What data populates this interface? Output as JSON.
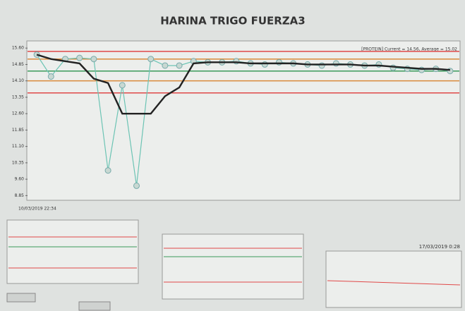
{
  "chart_data": {
    "type": "line",
    "title": "HARINA TRIGO FUERZA3",
    "legend_text": "[PROTEIN] Current = 14.56, Average = 15.02",
    "x_start_label": "10/03/2019 22:34",
    "x_end_label": "17/03/2019 0:28",
    "categories": [
      null,
      null,
      null,
      null,
      null,
      null,
      null,
      null,
      null,
      null,
      null,
      null,
      null,
      null,
      null,
      null,
      null,
      null,
      null,
      null,
      null,
      null,
      null,
      null,
      null,
      null,
      null,
      null,
      null,
      null
    ],
    "series": [
      {
        "color": "#6cc4b4",
        "markers": true,
        "values": [
          15.3,
          14.3,
          15.1,
          15.15,
          15.1,
          10.0,
          13.9,
          9.3,
          15.1,
          14.8,
          14.8,
          15.0,
          14.95,
          14.95,
          15.0,
          14.9,
          14.85,
          14.95,
          14.9,
          14.85,
          14.8,
          14.9,
          14.85,
          14.8,
          14.85,
          14.7,
          14.65,
          14.6,
          14.65,
          14.55
        ]
      },
      {
        "color": "#222222",
        "markers": false,
        "values": [
          15.3,
          15.1,
          15.0,
          14.9,
          14.2,
          14.0,
          12.6,
          12.6,
          12.6,
          13.4,
          13.8,
          14.9,
          14.95,
          14.95,
          14.95,
          14.9,
          14.9,
          14.9,
          14.9,
          14.85,
          14.85,
          14.85,
          14.85,
          14.8,
          14.8,
          14.75,
          14.7,
          14.65,
          14.65,
          14.6
        ]
      }
    ],
    "control_lines": [
      {
        "value": 15.45,
        "color": "#e04848"
      },
      {
        "value": 15.1,
        "color": "#d98a3a"
      },
      {
        "value": 14.55,
        "color": "#3a9a5a"
      },
      {
        "value": 14.1,
        "color": "#d98a3a"
      },
      {
        "value": 13.55,
        "color": "#e04848"
      }
    ],
    "ylim": [
      8.7,
      15.8
    ],
    "yticks": [
      {
        "value": 8.85,
        "label": "8.85"
      },
      {
        "value": 9.6,
        "label": "9.60"
      },
      {
        "value": 10.35,
        "label": "10.35"
      },
      {
        "value": 11.1,
        "label": "11.10"
      },
      {
        "value": 11.85,
        "label": "11.85"
      },
      {
        "value": 12.6,
        "label": "12.60"
      },
      {
        "value": 13.35,
        "label": "13.35"
      },
      {
        "value": 14.1,
        "label": "14.10"
      },
      {
        "value": 14.85,
        "label": "14.85"
      },
      {
        "value": 15.6,
        "label": "15.60"
      }
    ],
    "grid": false
  }
}
